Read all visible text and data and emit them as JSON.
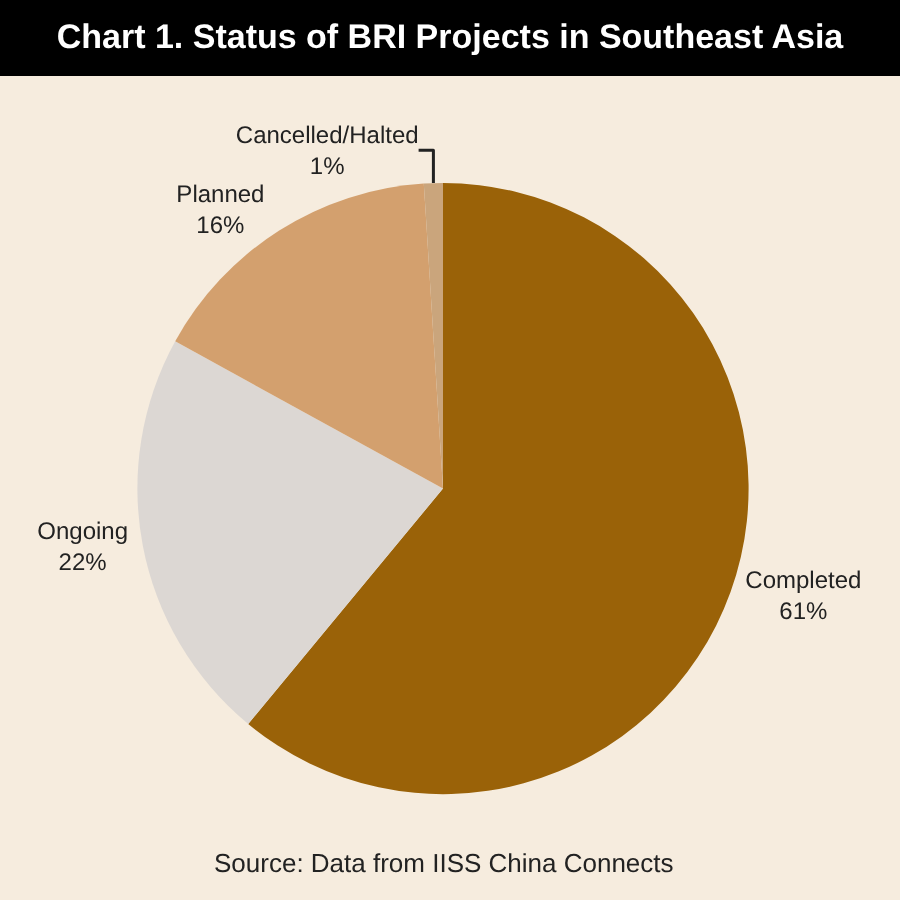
{
  "chart_data": {
    "type": "pie",
    "title": "Chart 1. Status of BRI Projects in Southeast Asia",
    "categories": [
      "Completed",
      "Ongoing",
      "Planned",
      "Cancelled/Halted"
    ],
    "values": [
      61,
      22,
      16,
      1
    ],
    "value_labels": [
      "61%",
      "22%",
      "16%",
      "1%"
    ],
    "colors": [
      "#9a6208",
      "#dcd7d3",
      "#d3a06e",
      "#caa57c"
    ],
    "annotations": [
      "Source: Data from IISS China Connects"
    ],
    "legend": false
  }
}
